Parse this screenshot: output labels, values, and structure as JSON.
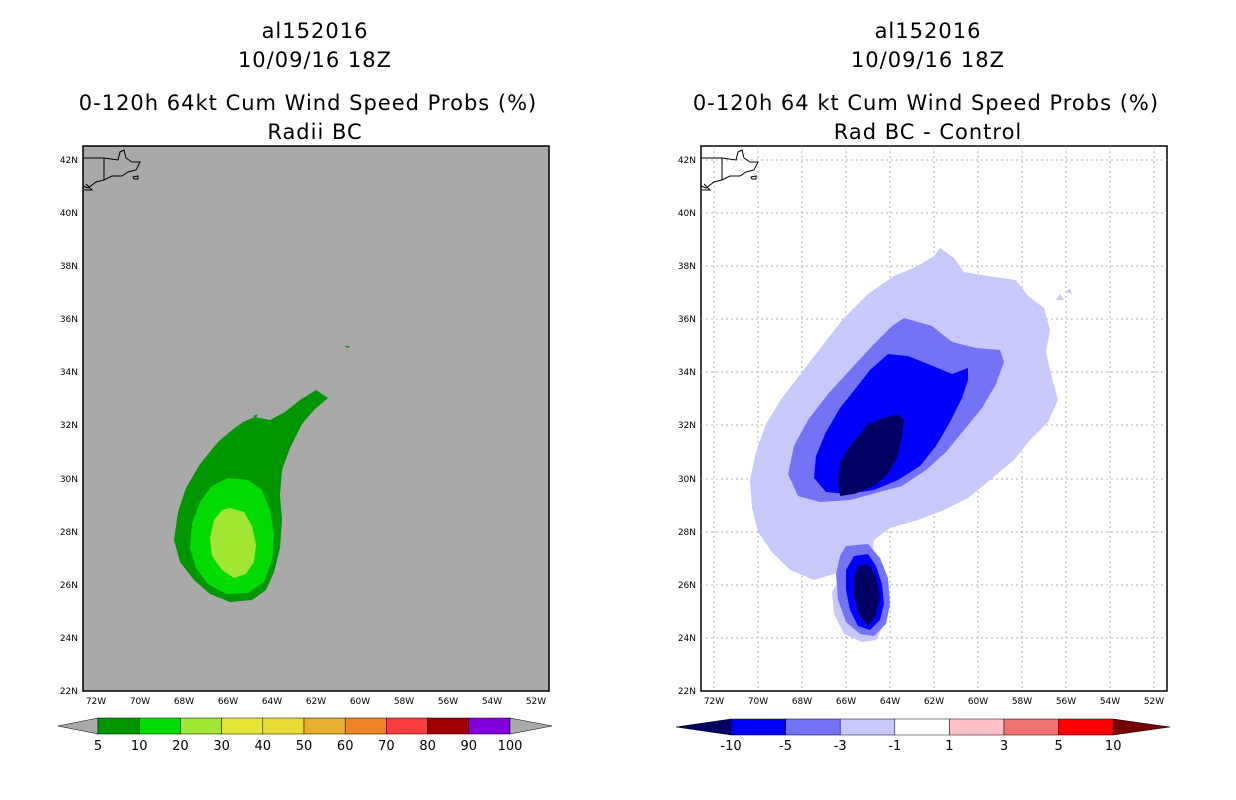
{
  "left_panel": {
    "title_lines": [
      "al152016",
      "10/09/16 18Z",
      "0-120h 64kt Cum Wind Speed Probs (%)",
      "Radii BC"
    ],
    "colorbar": {
      "labels": [
        "5",
        "10",
        "20",
        "30",
        "40",
        "50",
        "60",
        "70",
        "80",
        "90",
        "100"
      ],
      "colors": [
        "#009600",
        "#00dc00",
        "#a0e632",
        "#e6dc32",
        "#e6dc32",
        "#e6af2d",
        "#f08228",
        "#fa3c3c",
        "#a00000",
        "#8200dc"
      ],
      "end_color": "#aaaaaa"
    }
  },
  "right_panel": {
    "title_lines": [
      "al152016",
      "10/09/16 18Z",
      "0-120h 64 kt Cum Wind Speed Probs (%)",
      "Rad BC - Control"
    ],
    "colorbar": {
      "labels": [
        "-10",
        "-5",
        "-3",
        "-1",
        "1",
        "3",
        "5",
        "10"
      ],
      "colors": [
        "#0000ff",
        "#7373f5",
        "#c8c8fa",
        "#ffffff",
        "#ffc0c8",
        "#f07373",
        "#ff0000"
      ],
      "low_end_color": "#000064",
      "high_end_color": "#780000"
    }
  },
  "map_axes": {
    "lat_labels": [
      "42N",
      "40N",
      "38N",
      "36N",
      "34N",
      "32N",
      "30N",
      "28N",
      "26N",
      "24N",
      "22N"
    ],
    "lon_labels": [
      "72W",
      "70W",
      "68W",
      "66W",
      "64W",
      "62W",
      "60W",
      "58W",
      "56W",
      "54W",
      "52W"
    ]
  },
  "colors": {
    "land_background": "#a9a9a9",
    "green_5": "#009600",
    "green_10": "#00dc00",
    "green_20": "#a0e632",
    "blue_dark": "#000064",
    "blue_10": "#0000ff",
    "blue_5": "#7373f5",
    "blue_3": "#c8c8fa"
  }
}
